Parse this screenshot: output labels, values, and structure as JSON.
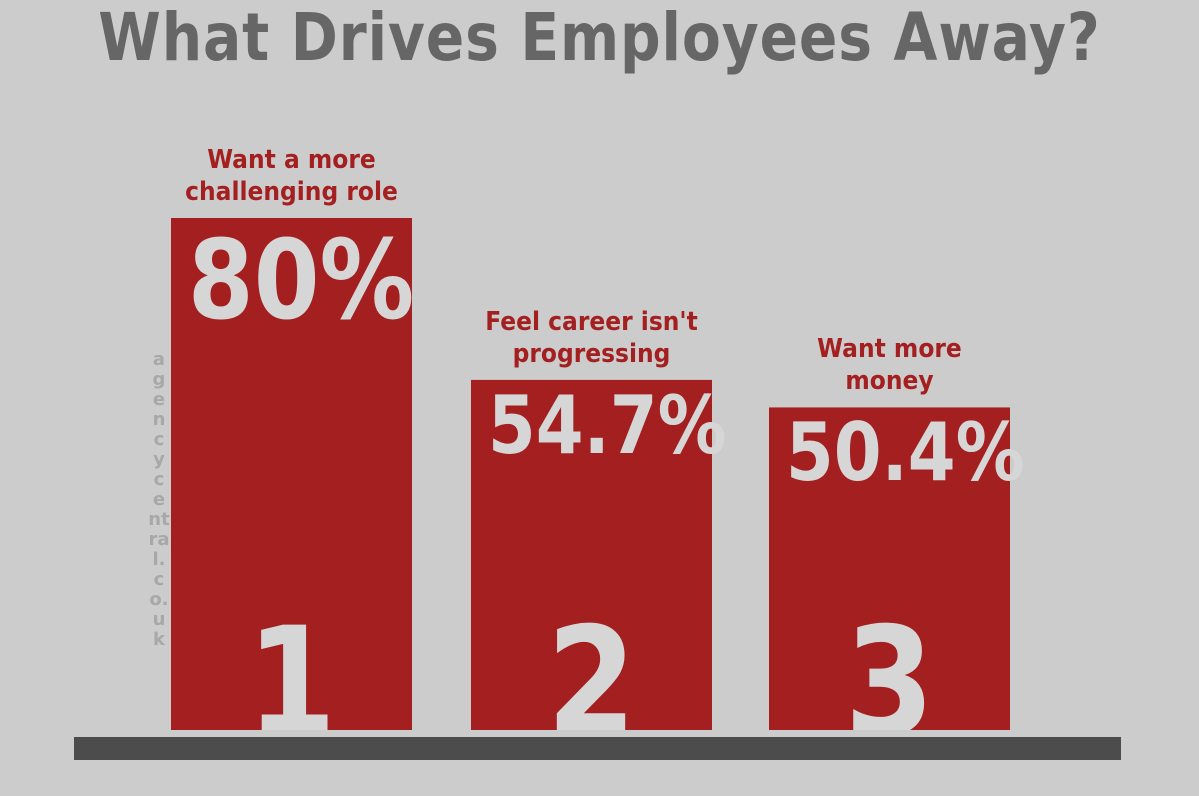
{
  "chart_data": {
    "type": "bar",
    "title": "What Drives Employees Away?",
    "categories": [
      "Want a more\nchallenging role",
      "Feel career isn't\nprogressing",
      "Want more\nmoney"
    ],
    "values": [
      80,
      54.7,
      50.4
    ],
    "value_labels": [
      "80%",
      "54.7%",
      "50.4%"
    ],
    "ranks": [
      "1",
      "2",
      "3"
    ],
    "ylim": [
      0,
      100
    ],
    "grid": false,
    "colors": {
      "bar": "#a41f1f",
      "label": "#a41f1f",
      "value_text": "#d6d6d6",
      "base": "#4c4c4c",
      "title": "#666666",
      "background": "#cccccc"
    }
  },
  "watermark": "agencycentral.co.uk"
}
